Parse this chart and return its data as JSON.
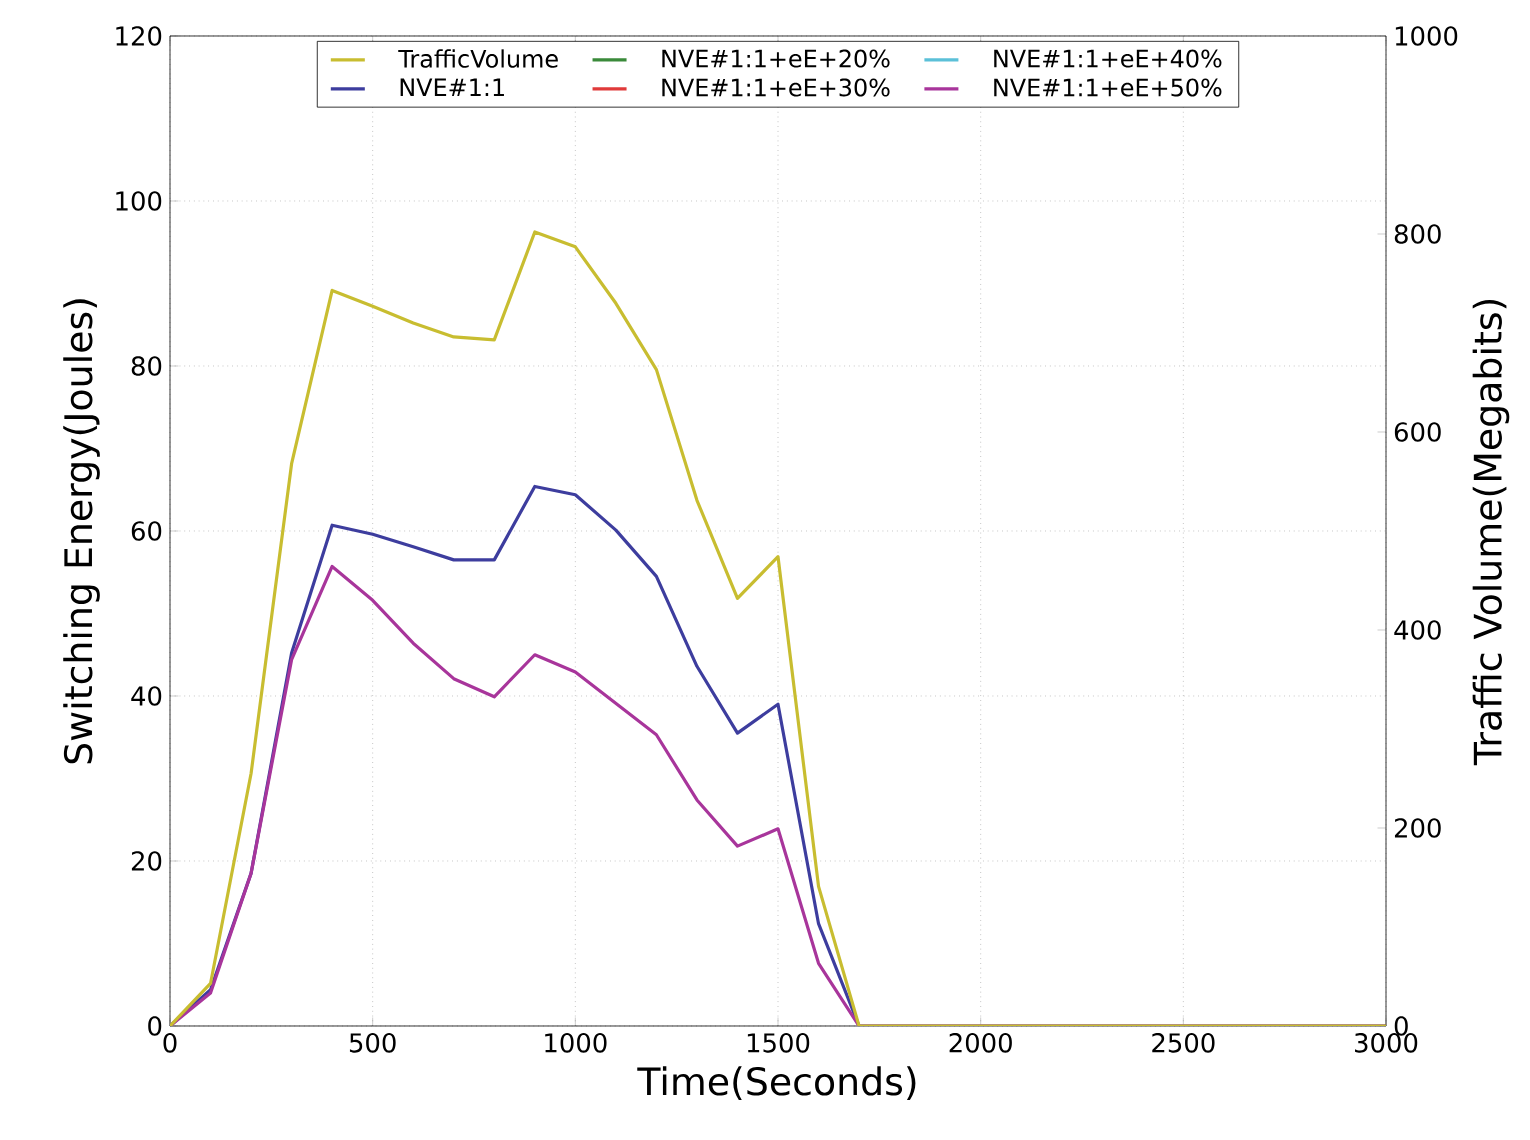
{
  "chart_data": {
    "type": "line",
    "xlabel": "Time(Seconds)",
    "ylabel": "Switching Energy(Joules)",
    "y2label": "Traffic Volume(Megabits)",
    "x": [
      0,
      100,
      200,
      300,
      400,
      500,
      600,
      700,
      800,
      900,
      1000,
      1100,
      1200,
      1300,
      1400,
      1500,
      1600,
      1700,
      3000
    ],
    "series": [
      {
        "name": "TrafficVolume",
        "color": "#c8bd30",
        "axis": "y2",
        "values": [
          0,
          43,
          255,
          568,
          743,
          727,
          710,
          696,
          693,
          802,
          787,
          730,
          663,
          531,
          432,
          474,
          141,
          0,
          0
        ]
      },
      {
        "name": "NVE#1:1",
        "color": "#3d3d9e",
        "values": [
          0,
          4.4,
          18.5,
          45.2,
          60.7,
          59.6,
          58.1,
          56.5,
          56.5,
          65.4,
          64.4,
          60.1,
          54.5,
          43.6,
          35.5,
          39.0,
          12.4,
          0,
          0
        ]
      },
      {
        "name": "NVE#1:1+eE+20%",
        "color": "#3a8a3a",
        "values": [
          null,
          null,
          null,
          null,
          null,
          null,
          null,
          null,
          null,
          null,
          null,
          null,
          null,
          null,
          null,
          null,
          null,
          null,
          null
        ]
      },
      {
        "name": "NVE#1:1+eE+30%",
        "color": "#e03a3a",
        "values": [
          null,
          null,
          null,
          null,
          null,
          null,
          null,
          null,
          null,
          null,
          null,
          null,
          null,
          null,
          null,
          null,
          null,
          null,
          null
        ]
      },
      {
        "name": "NVE#1:1+eE+40%",
        "color": "#5bc0d8",
        "values": [
          null,
          null,
          null,
          null,
          null,
          null,
          null,
          null,
          null,
          null,
          null,
          null,
          null,
          null,
          null,
          null,
          null,
          null,
          null
        ]
      },
      {
        "name": "NVE#1:1+eE+50%",
        "color": "#a8359b",
        "values": [
          0,
          4.0,
          18.5,
          44.4,
          55.7,
          51.6,
          46.4,
          42.1,
          39.9,
          45.0,
          42.9,
          39.1,
          35.3,
          27.4,
          21.8,
          23.9,
          7.6,
          0,
          0
        ]
      }
    ],
    "xlim": [
      0,
      3000
    ],
    "xticks": [
      0,
      500,
      1000,
      1500,
      2000,
      2500,
      3000
    ],
    "ylim": [
      0,
      120
    ],
    "yticks": [
      0,
      20,
      40,
      60,
      80,
      100,
      120
    ],
    "y2lim": [
      0,
      1000
    ],
    "y2ticks": [
      0,
      200,
      400,
      600,
      800,
      1000
    ],
    "grid": true,
    "legend": "top",
    "marker": "none",
    "line_style": "solid"
  }
}
